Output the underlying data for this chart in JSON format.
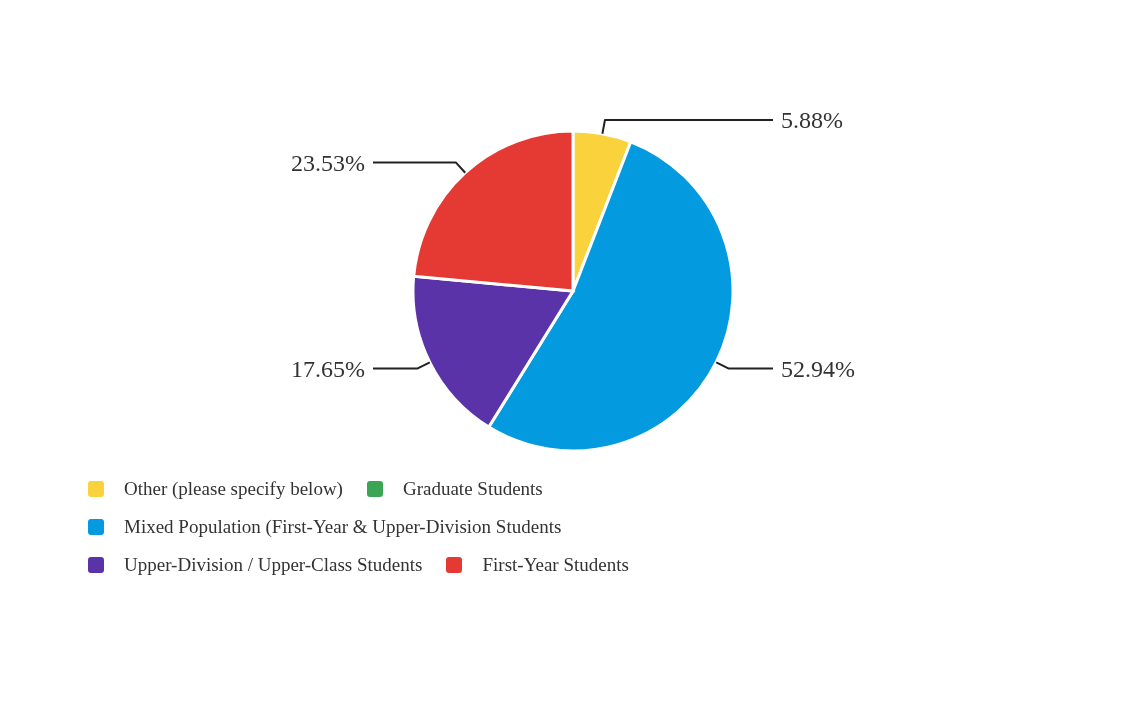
{
  "chart_data": {
    "type": "pie",
    "categories": [
      "Other (please specify below)",
      "Graduate Students",
      "Mixed Population (First-Year & Upper-Division Students",
      "Upper-Division / Upper-Class Students",
      "First-Year Students"
    ],
    "values": [
      5.88,
      0,
      52.94,
      17.65,
      23.53
    ],
    "colors": [
      "#f9d23c",
      "#3aa655",
      "#049ae0",
      "#5b33a8",
      "#e53a33"
    ],
    "value_labels": [
      "5.88%",
      null,
      "52.94%",
      "17.65%",
      "23.53%"
    ],
    "legend": "bottom"
  }
}
